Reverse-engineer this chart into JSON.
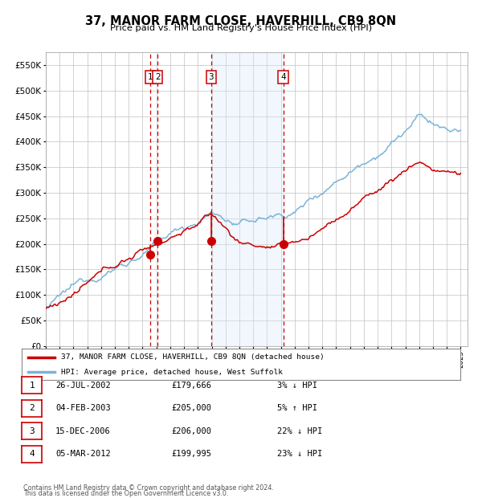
{
  "title": "37, MANOR FARM CLOSE, HAVERHILL, CB9 8QN",
  "subtitle": "Price paid vs. HM Land Registry's House Price Index (HPI)",
  "legend_line1": "37, MANOR FARM CLOSE, HAVERHILL, CB9 8QN (detached house)",
  "legend_line2": "HPI: Average price, detached house, West Suffolk",
  "footer1": "Contains HM Land Registry data © Crown copyright and database right 2024.",
  "footer2": "This data is licensed under the Open Government Licence v3.0.",
  "transactions": [
    {
      "num": 1,
      "date": "26-JUL-2002",
      "price": 179666,
      "pct": "3%",
      "dir": "↓",
      "year": 2002.57
    },
    {
      "num": 2,
      "date": "04-FEB-2003",
      "price": 205000,
      "pct": "5%",
      "dir": "↑",
      "year": 2003.09
    },
    {
      "num": 3,
      "date": "15-DEC-2006",
      "price": 206000,
      "pct": "22%",
      "dir": "↓",
      "year": 2006.96
    },
    {
      "num": 4,
      "date": "05-MAR-2012",
      "price": 199995,
      "pct": "23%",
      "dir": "↓",
      "year": 2012.18
    }
  ],
  "hpi_color": "#7ab4d8",
  "price_color": "#cc0000",
  "background_color": "#ffffff",
  "grid_color": "#c0c0c0",
  "highlight_fill": "#d8eaf7",
  "vline_color": "#cc0000",
  "ylim": [
    0,
    575000
  ],
  "yticks": [
    0,
    50000,
    100000,
    150000,
    200000,
    250000,
    300000,
    350000,
    400000,
    450000,
    500000,
    550000
  ],
  "xlim_start": 1995.0,
  "xlim_end": 2025.5
}
